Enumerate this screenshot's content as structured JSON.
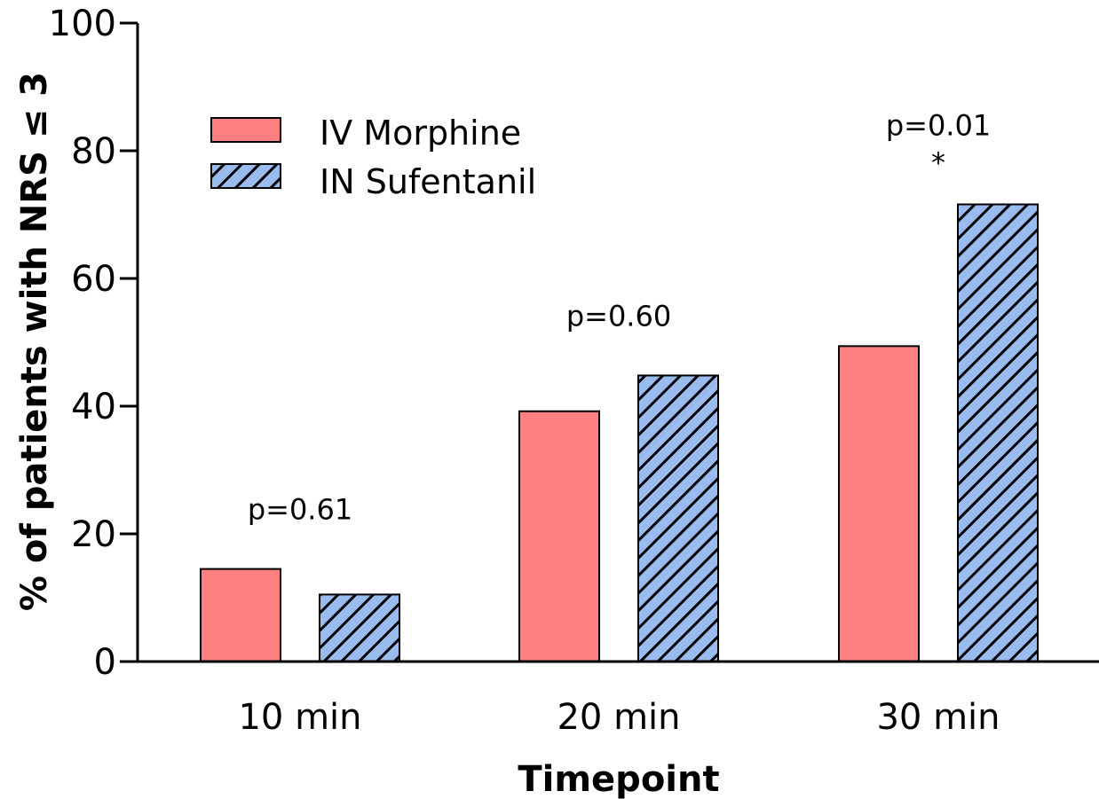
{
  "chart_data": {
    "type": "bar",
    "categories": [
      "10 min",
      "20 min",
      "30 min"
    ],
    "series": [
      {
        "name": "IV Morphine",
        "values": [
          14.5,
          39.2,
          49.4
        ],
        "color": "#ff8080",
        "pattern": "solid"
      },
      {
        "name": "IN Sufentanil",
        "values": [
          10.5,
          44.8,
          71.6
        ],
        "color": "#99bbee",
        "pattern": "diagonal-hatch"
      }
    ],
    "xlabel": "Timepoint",
    "ylabel": "% of patients with NRS ≤ 3",
    "ylim": [
      0,
      100
    ],
    "yticks": [
      0,
      20,
      40,
      60,
      80,
      100
    ],
    "annotations": [
      {
        "category": "10 min",
        "text": "p=0.61",
        "star": ""
      },
      {
        "category": "20 min",
        "text": "p=0.60",
        "star": ""
      },
      {
        "category": "30 min",
        "text": "p=0.01",
        "star": "*"
      }
    ],
    "legend_position": "top-left",
    "grid": false
  }
}
